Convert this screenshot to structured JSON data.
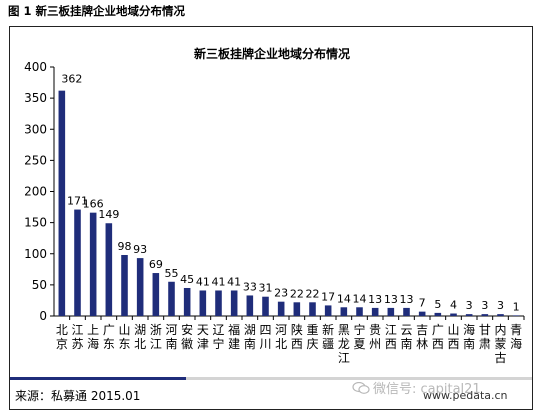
{
  "caption": "图 1  新三板挂牌企业地域分布情况",
  "chart_data": {
    "type": "bar",
    "title": "新三板挂牌企业地域分布情况",
    "categories": [
      "北京",
      "江苏",
      "上海",
      "广东",
      "山东",
      "湖北",
      "浙江",
      "河南",
      "安徽",
      "天津",
      "辽宁",
      "福建",
      "湖南",
      "四川",
      "河北",
      "陕西",
      "重庆",
      "新疆",
      "黑龙江",
      "宁夏",
      "贵州",
      "江西",
      "云南",
      "吉林",
      "广西",
      "山西",
      "海南",
      "甘肃",
      "内蒙古",
      "青海"
    ],
    "values": [
      362,
      171,
      166,
      149,
      98,
      93,
      69,
      55,
      45,
      41,
      41,
      41,
      33,
      31,
      23,
      22,
      22,
      17,
      14,
      14,
      13,
      13,
      13,
      7,
      5,
      4,
      3,
      3,
      3,
      1
    ],
    "yticks": [
      0,
      50,
      100,
      150,
      200,
      250,
      300,
      350,
      400
    ],
    "ylim": [
      0,
      400
    ],
    "xlabel": "",
    "ylabel": "",
    "grid": false,
    "bar_color": "#1f2d7a"
  },
  "footer": {
    "source": "来源：私募通  2015.01",
    "watermark": "微信号: capital21",
    "site": "www.pedata.cn",
    "bar_color": "#1f2d7a"
  }
}
